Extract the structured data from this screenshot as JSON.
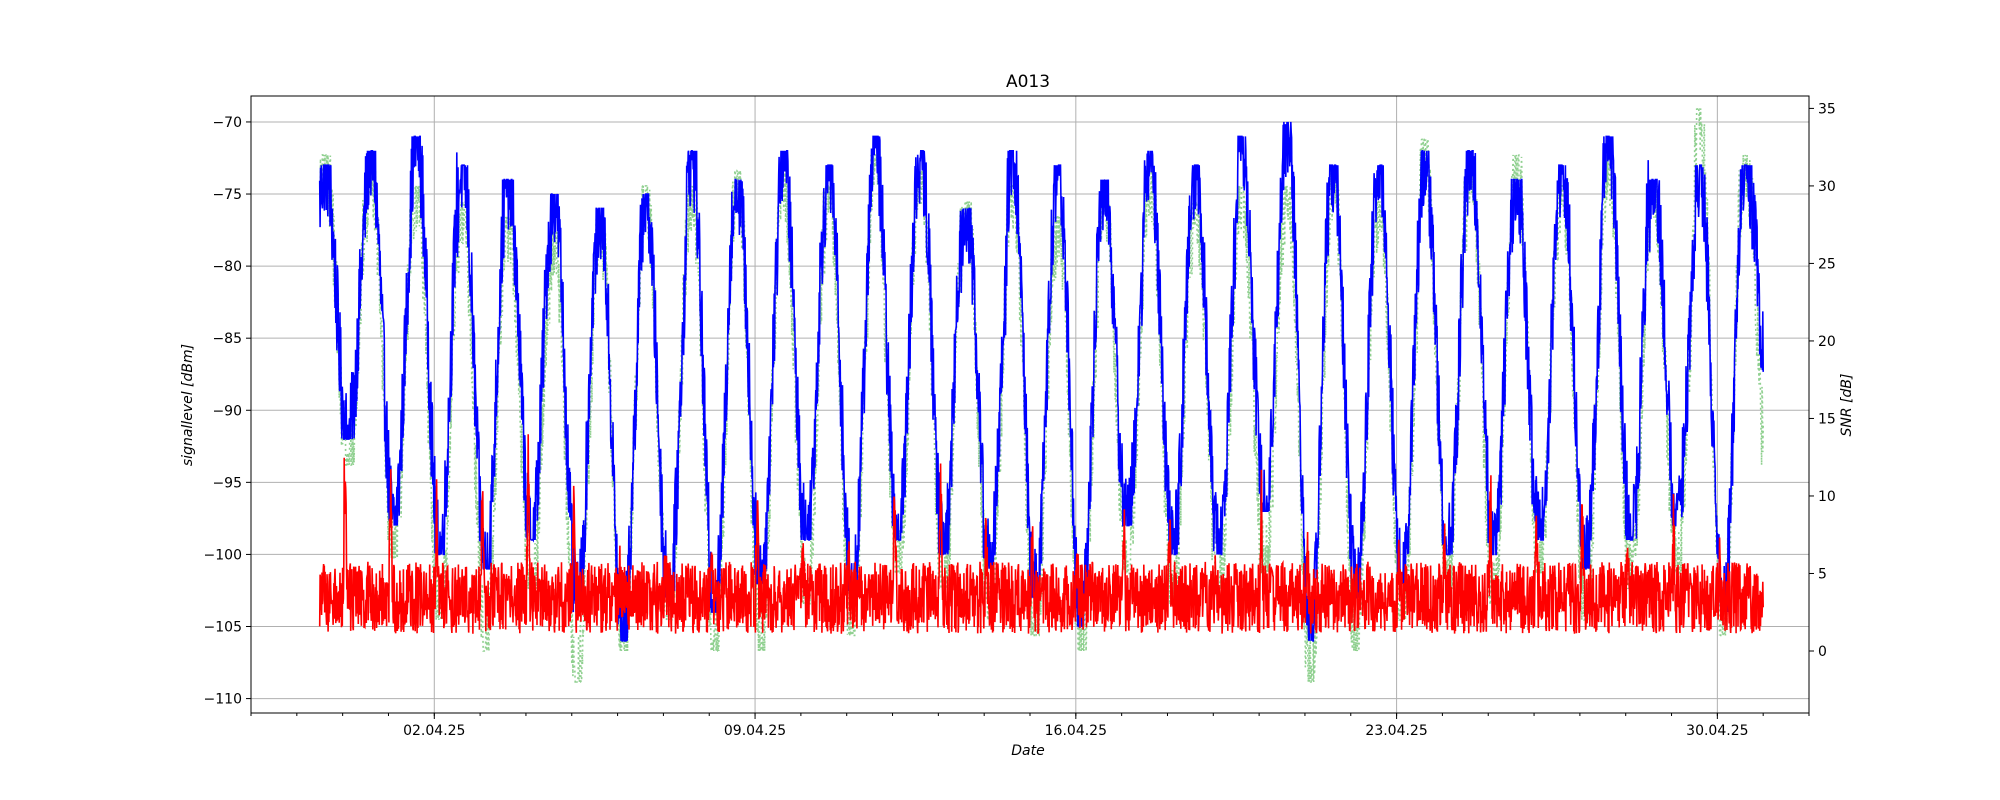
{
  "chart_data": {
    "type": "line",
    "title": "A013",
    "xlabel": "Date",
    "ylabel_left": "signallevel [dBm]",
    "ylabel_right": "SNR [dB]",
    "x_ticks": [
      "02.04.25",
      "09.04.25",
      "16.04.25",
      "23.04.25",
      "30.04.25"
    ],
    "x_tick_dates": [
      "2025-04-02",
      "2025-04-09",
      "2025-04-16",
      "2025-04-23",
      "2025-04-30"
    ],
    "xlim": [
      "2025-03-29",
      "2025-05-02"
    ],
    "x_range": [
      "2025-03-30 12:00",
      "2025-05-01 00:00"
    ],
    "ylim_left": [
      -111,
      -68.2
    ],
    "yticks_left": [
      -110,
      -105,
      -100,
      -95,
      -90,
      -85,
      -80,
      -75,
      -70
    ],
    "ylim_right": [
      -4,
      35.8
    ],
    "yticks_right": [
      0,
      5,
      10,
      15,
      20,
      25,
      30,
      35
    ],
    "grid": true,
    "series": [
      {
        "axis": "left",
        "color": "#0000ff",
        "style": "solid",
        "daily_peak": [
          -73,
          -72,
          -71,
          -73,
          -74,
          -75,
          -76,
          -75,
          -72,
          -74,
          -72,
          -73,
          -71,
          -72,
          -76,
          -72,
          -73,
          -74,
          -72,
          -73,
          -71,
          -70,
          -73,
          -73,
          -72,
          -72,
          -74,
          -73,
          -71,
          -74,
          -73,
          -73
        ],
        "daily_trough": [
          -92,
          -98,
          -100,
          -101,
          -99,
          -104,
          -106,
          -103,
          -104,
          -102,
          -99,
          -103,
          -99,
          -100,
          -101,
          -103,
          -105,
          -98,
          -100,
          -100,
          -97,
          -106,
          -103,
          -102,
          -100,
          -100,
          -99,
          -101,
          -99,
          -98,
          -104,
          -88
        ],
        "noise_amplitude": 3.5
      },
      {
        "axis": "left",
        "color": "#ff0000",
        "style": "solid",
        "baseline": -103,
        "range": [
          -108.5,
          -87.5
        ],
        "daily_spike": [
          -90,
          -91,
          -96,
          -95,
          -92,
          -94,
          -100,
          -100,
          -99,
          -96,
          -98,
          -100,
          -92,
          -91,
          -97,
          -98,
          -101,
          -97,
          -98,
          -99,
          -96,
          -97,
          -104,
          -98,
          -97,
          -95,
          -96,
          -96,
          -98,
          -97,
          -100,
          -88
        ],
        "noise_amplitude": 2.5
      },
      {
        "axis": "right",
        "color": "#90d090",
        "style": "dotted",
        "daily_peak": [
          32,
          31,
          30,
          29,
          28,
          27,
          28,
          30,
          30,
          31,
          31,
          30,
          32,
          31,
          29,
          30,
          28,
          30,
          31,
          29,
          30,
          30,
          31,
          29,
          33,
          31,
          32,
          30,
          32,
          30,
          35,
          32
        ],
        "daily_trough": [
          12,
          6,
          2,
          0,
          4,
          -2,
          0,
          2,
          0,
          0,
          3,
          1,
          5,
          4,
          2,
          1,
          0,
          5,
          3,
          4,
          5,
          -2,
          0,
          2,
          4,
          3,
          5,
          2,
          4,
          5,
          1,
          10
        ],
        "noise_amplitude": 3.0
      }
    ]
  }
}
